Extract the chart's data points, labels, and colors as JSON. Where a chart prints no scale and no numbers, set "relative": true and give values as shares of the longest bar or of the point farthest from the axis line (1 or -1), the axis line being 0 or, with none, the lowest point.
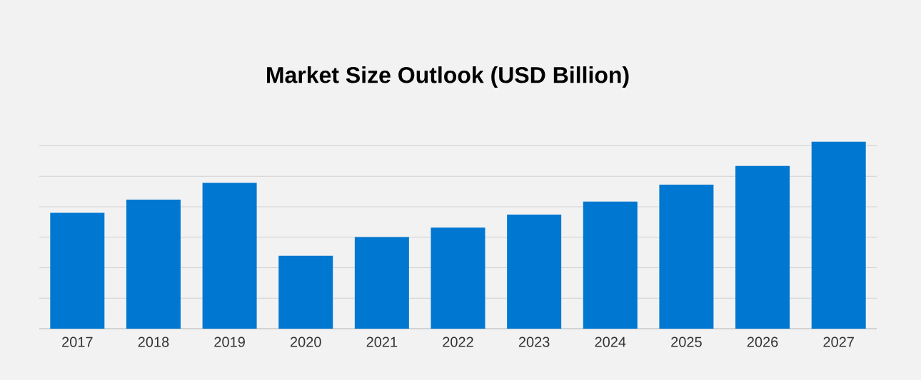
{
  "chart_data": {
    "type": "bar",
    "title": "Market Size Outlook (USD Billion)",
    "relative": true,
    "categories": [
      "2017",
      "2018",
      "2019",
      "2020",
      "2021",
      "2022",
      "2023",
      "2024",
      "2025",
      "2026",
      "2027"
    ],
    "values": [
      0.62,
      0.69,
      0.78,
      0.39,
      0.49,
      0.54,
      0.61,
      0.68,
      0.77,
      0.87,
      1.0
    ],
    "color": "#0077d0",
    "grid": "y",
    "tick_labels": "x"
  }
}
